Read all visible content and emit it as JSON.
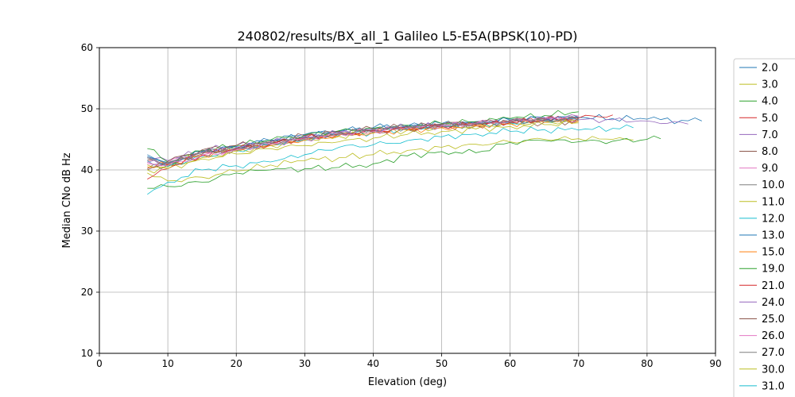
{
  "chart_data": {
    "type": "line",
    "title": "240802/results/BX_all_1 Galileo L5-E5A(BPSK(10)-PD)",
    "xlabel": "Elevation (deg)",
    "ylabel": "Median CNo dB Hz",
    "xlim": [
      0,
      90
    ],
    "ylim": [
      10,
      60
    ],
    "xticks": [
      "0",
      "10",
      "20",
      "30",
      "40",
      "50",
      "60",
      "70",
      "80",
      "90"
    ],
    "yticks": [
      "10",
      "20",
      "30",
      "40",
      "50",
      "60"
    ],
    "grid": true,
    "legend_position": "right (outside plot, clipped)",
    "series": [
      {
        "name": "2.0",
        "color": "#1f77b4",
        "x": [
          7,
          10,
          15,
          20,
          25,
          30,
          35,
          40,
          45,
          50,
          55,
          60,
          65,
          70,
          75,
          80,
          85,
          88
        ],
        "y": [
          42.5,
          41.2,
          43.0,
          43.8,
          44.8,
          45.5,
          46.3,
          46.8,
          47.2,
          47.5,
          47.9,
          48.3,
          48.6,
          48.6,
          48.4,
          48.3,
          48.1,
          48.0
        ]
      },
      {
        "name": "3.0",
        "color": "#bcbd22",
        "x": [
          7,
          10,
          15,
          20,
          25,
          30,
          35,
          40,
          45,
          50,
          55,
          60,
          65,
          70,
          75,
          78
        ],
        "y": [
          39.5,
          38.2,
          38.8,
          39.8,
          40.8,
          41.5,
          42.0,
          42.5,
          43.2,
          43.7,
          44.2,
          44.6,
          45.0,
          45.1,
          45.0,
          44.9
        ]
      },
      {
        "name": "4.0",
        "color": "#2ca02c",
        "x": [
          7,
          10,
          15,
          20,
          25,
          30,
          35,
          40,
          45,
          50,
          55,
          60,
          65,
          70,
          75,
          80,
          82
        ],
        "y": [
          37.0,
          37.3,
          38.0,
          39.5,
          40.0,
          40.2,
          40.4,
          41.0,
          42.3,
          43.0,
          42.8,
          44.5,
          44.8,
          44.6,
          44.7,
          45.0,
          45.1
        ]
      },
      {
        "name": "5.0",
        "color": "#d62728",
        "x": [
          7,
          10,
          15,
          20,
          25,
          30,
          35,
          40,
          45,
          50,
          55,
          60,
          65,
          70,
          75
        ],
        "y": [
          41.5,
          40.8,
          42.8,
          43.5,
          44.2,
          45.2,
          45.8,
          46.3,
          46.8,
          47.0,
          47.3,
          47.8,
          48.2,
          48.5,
          49.0
        ]
      },
      {
        "name": "7.0",
        "color": "#9467bd",
        "x": [
          7,
          10,
          15,
          20,
          25,
          30,
          35,
          40,
          45,
          50,
          55,
          60,
          65,
          70,
          75,
          80,
          86
        ],
        "y": [
          42.0,
          41.5,
          43.2,
          44.0,
          44.6,
          45.5,
          46.2,
          46.6,
          47.1,
          47.3,
          47.5,
          47.8,
          48.0,
          48.2,
          48.2,
          48.0,
          47.5
        ]
      },
      {
        "name": "8.0",
        "color": "#8c564b",
        "x": [
          7,
          10,
          15,
          20,
          25,
          30,
          35,
          40,
          45,
          50,
          55,
          60,
          65,
          70
        ],
        "y": [
          40.2,
          40.8,
          42.6,
          43.4,
          44.2,
          45.0,
          45.8,
          46.2,
          46.6,
          47.0,
          47.2,
          47.6,
          47.8,
          48.0
        ]
      },
      {
        "name": "9.0",
        "color": "#e377c2",
        "x": [
          7,
          10,
          15,
          20,
          25,
          30,
          35,
          40,
          45,
          50,
          55,
          60,
          65,
          70
        ],
        "y": [
          41.0,
          41.2,
          42.5,
          43.3,
          44.3,
          45.2,
          45.9,
          46.4,
          46.8,
          47.2,
          47.6,
          48.0,
          48.4,
          48.6
        ]
      },
      {
        "name": "10.0",
        "color": "#7f7f7f",
        "x": [
          7,
          10,
          15,
          20,
          25,
          30,
          35,
          40,
          45,
          50,
          55,
          60,
          65,
          70
        ],
        "y": [
          41.8,
          41.0,
          42.8,
          43.6,
          44.4,
          45.3,
          46.0,
          46.5,
          46.9,
          47.3,
          47.5,
          47.9,
          48.1,
          48.3
        ]
      },
      {
        "name": "11.0",
        "color": "#bcbd22",
        "x": [
          7,
          10,
          15,
          20,
          25,
          30,
          35,
          40,
          45,
          50,
          55,
          60,
          65,
          70
        ],
        "y": [
          40.8,
          40.5,
          42.0,
          43.0,
          44.0,
          44.8,
          45.5,
          46.0,
          46.5,
          46.9,
          47.2,
          47.5,
          47.8,
          48.0
        ]
      },
      {
        "name": "12.0",
        "color": "#17becf",
        "x": [
          7,
          10,
          15,
          20,
          25,
          30,
          35,
          40,
          45,
          50,
          55,
          60,
          65,
          70
        ],
        "y": [
          41.5,
          40.6,
          42.2,
          43.2,
          44.0,
          45.0,
          45.7,
          46.2,
          46.7,
          47.1,
          47.4,
          47.7,
          48.0,
          48.2
        ]
      },
      {
        "name": "13.0",
        "color": "#1f77b4",
        "x": [
          7,
          10,
          15,
          20,
          25,
          30,
          35,
          40,
          45,
          50,
          55,
          60,
          65,
          70
        ],
        "y": [
          42.2,
          41.0,
          43.0,
          43.8,
          44.9,
          45.8,
          46.4,
          46.9,
          47.3,
          47.6,
          47.8,
          48.1,
          48.4,
          48.6
        ]
      },
      {
        "name": "15.0",
        "color": "#ff7f0e",
        "x": [
          7,
          10,
          15,
          20,
          25,
          30,
          35,
          40,
          45,
          50,
          55,
          60,
          65,
          70
        ],
        "y": [
          40.5,
          40.9,
          42.4,
          43.2,
          44.0,
          44.9,
          45.6,
          46.1,
          46.5,
          46.9,
          47.2,
          47.6,
          47.8,
          48.0
        ]
      },
      {
        "name": "19.0",
        "color": "#2ca02c",
        "x": [
          7,
          10,
          15,
          20,
          25,
          30,
          35,
          40,
          45,
          50,
          55,
          60,
          65,
          70
        ],
        "y": [
          43.5,
          41.3,
          43.1,
          44.0,
          44.9,
          45.7,
          46.4,
          46.8,
          47.3,
          47.6,
          47.9,
          48.4,
          48.9,
          49.5
        ]
      },
      {
        "name": "21.0",
        "color": "#d62728",
        "x": [
          7,
          10,
          15,
          20,
          25,
          30,
          35,
          40,
          45,
          50,
          55,
          60,
          65,
          70
        ],
        "y": [
          38.5,
          40.2,
          42.4,
          43.4,
          44.3,
          45.2,
          45.9,
          46.4,
          46.8,
          47.1,
          47.4,
          47.8,
          48.1,
          48.4
        ]
      },
      {
        "name": "24.0",
        "color": "#9467bd",
        "x": [
          7,
          10,
          15,
          20,
          25,
          30,
          35,
          40,
          45,
          50,
          55,
          60,
          65,
          70
        ],
        "y": [
          41.2,
          41.1,
          42.9,
          43.7,
          44.5,
          45.4,
          46.1,
          46.6,
          47.0,
          47.4,
          47.7,
          48.0,
          48.3,
          48.5
        ]
      },
      {
        "name": "25.0",
        "color": "#8c564b",
        "x": [
          7,
          10,
          15,
          20,
          25,
          30,
          35,
          40,
          45,
          50,
          55,
          60,
          65,
          70
        ],
        "y": [
          40.0,
          41.4,
          43.3,
          44.0,
          44.7,
          45.6,
          46.3,
          46.7,
          47.1,
          47.5,
          47.8,
          48.1,
          48.4,
          48.6
        ]
      },
      {
        "name": "26.0",
        "color": "#e377c2",
        "x": [
          7,
          10,
          15,
          20,
          25,
          30,
          35,
          40,
          45,
          50,
          55,
          60,
          65,
          70
        ],
        "y": [
          41.3,
          40.7,
          42.3,
          43.3,
          44.2,
          45.1,
          45.8,
          46.3,
          46.8,
          47.2,
          47.6,
          48.0,
          48.5,
          48.8
        ]
      },
      {
        "name": "27.0",
        "color": "#7f7f7f",
        "x": [
          7,
          10,
          15,
          20,
          25,
          30,
          35,
          40,
          45,
          50,
          55,
          60,
          65,
          70
        ],
        "y": [
          42.0,
          41.2,
          42.8,
          43.5,
          44.4,
          45.2,
          46.0,
          46.5,
          47.0,
          47.3,
          47.6,
          47.9,
          48.2,
          48.4
        ]
      },
      {
        "name": "30.0",
        "color": "#bcbd22",
        "x": [
          7,
          10,
          15,
          20,
          25,
          30,
          35,
          40,
          45,
          50,
          55,
          60,
          65,
          70
        ],
        "y": [
          40.0,
          40.2,
          41.8,
          42.6,
          43.5,
          44.0,
          44.6,
          45.2,
          45.8,
          46.3,
          46.7,
          47.1,
          47.4,
          47.7
        ]
      },
      {
        "name": "31.0",
        "color": "#17becf",
        "x": [
          7,
          10,
          15,
          20,
          25,
          30,
          35,
          40,
          45,
          50,
          55,
          60,
          65,
          70,
          75,
          78
        ],
        "y": [
          36.0,
          38.0,
          40.0,
          40.7,
          41.3,
          42.5,
          43.7,
          44.1,
          44.8,
          45.4,
          45.9,
          46.3,
          46.6,
          46.5,
          46.8,
          46.9
        ]
      }
    ]
  }
}
